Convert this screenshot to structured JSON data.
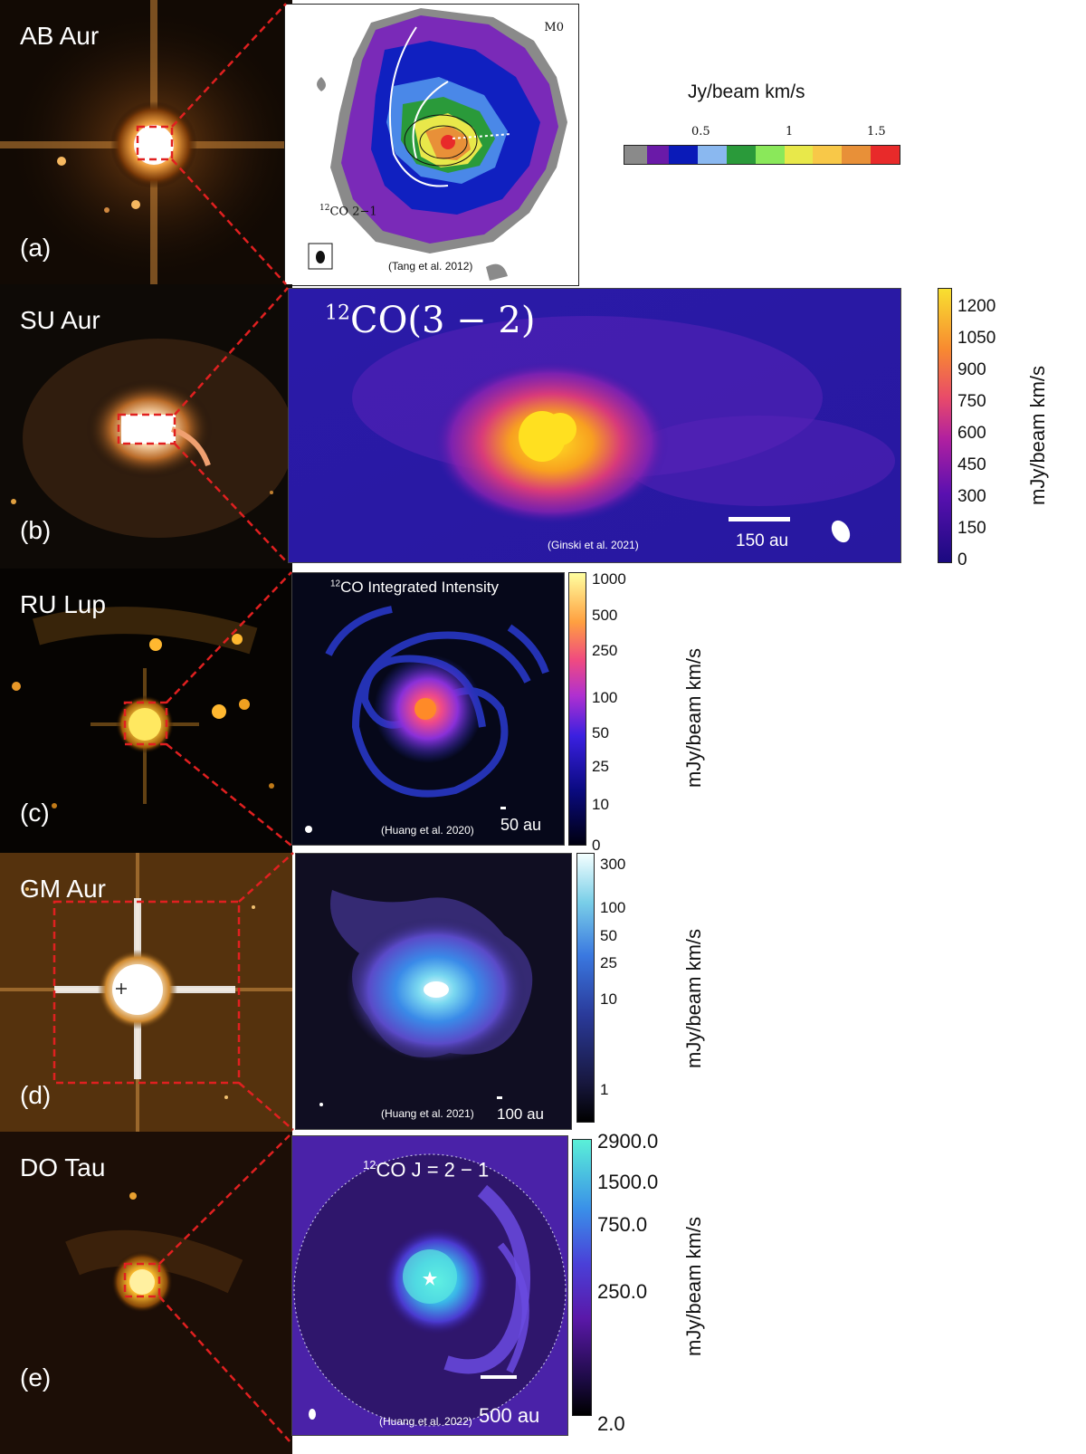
{
  "panels": [
    {
      "object": "AB Aur",
      "letter": "(a)",
      "map_label": "12CO 2-1",
      "map_label_sup": "12",
      "map_label_main": "CO 2−1",
      "moment": "M0",
      "citation": "(Tang et al. 2012)",
      "colorbar_title": "Jy/beam km/s",
      "colorbar_ticks": [
        "0.5",
        "1",
        "1.5"
      ],
      "colorbar_colors": [
        "#8a8a8a",
        "#6a1aa8",
        "#0a1ab8",
        "#3a78e8",
        "#8ab8f0",
        "#2a9a3a",
        "#8ae85a",
        "#e8e84a",
        "#f8c848",
        "#e89038",
        "#c85a28",
        "#e82a2a"
      ]
    },
    {
      "object": "SU Aur",
      "letter": "(b)",
      "map_label_sup": "12",
      "map_label_main": "CO(3 − 2)",
      "citation": "(Ginski et al. 2021)",
      "scalebar": "150 au",
      "colorbar_unit": "mJy/beam km/s",
      "colorbar_ticks": [
        "1200",
        "1050",
        "900",
        "750",
        "600",
        "450",
        "300",
        "150",
        "0"
      ]
    },
    {
      "object": "RU Lup",
      "letter": "(c)",
      "map_label_sup": "12",
      "map_label_main": "CO Integrated Intensity",
      "citation": "(Huang et al. 2020)",
      "scalebar": "50 au",
      "colorbar_unit": "mJy/beam km/s",
      "colorbar_ticks": [
        "1000",
        "500",
        "250",
        "100",
        "50",
        "25",
        "10",
        "0"
      ]
    },
    {
      "object": "GM Aur",
      "letter": "(d)",
      "citation": "(Huang et al. 2021)",
      "scalebar": "100 au",
      "colorbar_unit": "mJy/beam km/s",
      "colorbar_ticks": [
        "300",
        "100",
        "50",
        "25",
        "10",
        "1"
      ]
    },
    {
      "object": "DO Tau",
      "letter": "(e)",
      "map_label_sup": "12",
      "map_label_main": "CO J = 2 − 1",
      "citation": "(Huang et al. 2022)",
      "scalebar": "500 au",
      "colorbar_unit": "mJy/beam km/s",
      "colorbar_ticks": [
        "2900.0",
        "1500.0",
        "750.0",
        "250.0",
        "2.0"
      ]
    }
  ],
  "colors": {
    "zoom_box": "#e02020",
    "star_glow": "#ffd08a",
    "sky_dark": "#0c0804"
  }
}
